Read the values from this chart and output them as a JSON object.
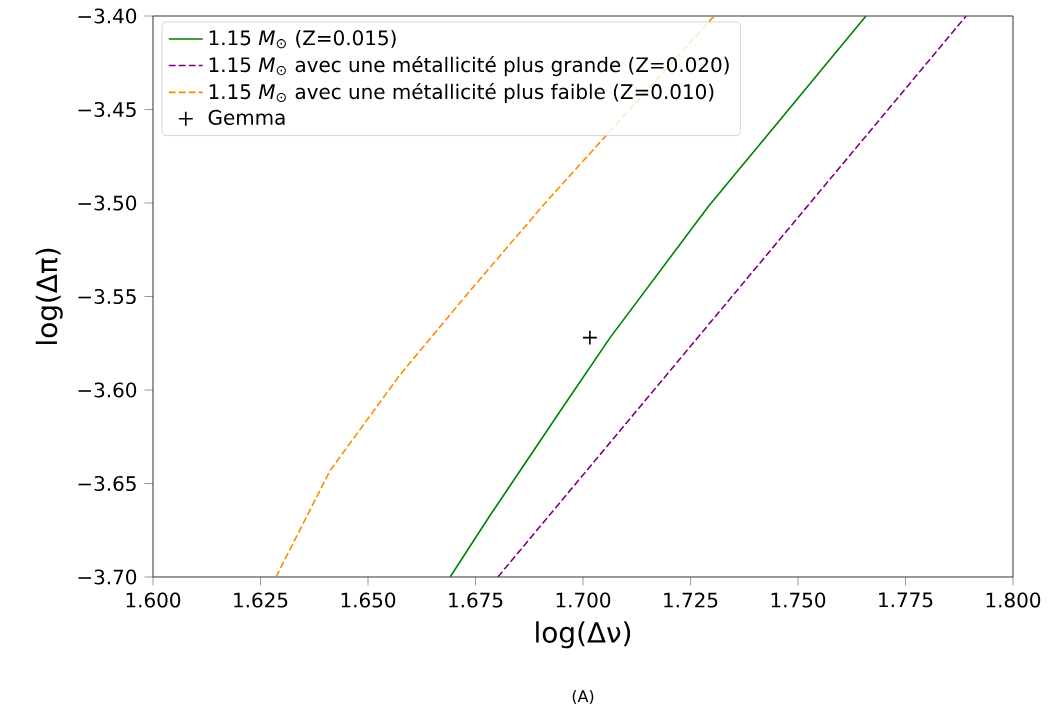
{
  "chart_data": {
    "type": "line",
    "xlabel": "log(Δν)",
    "ylabel": "log(Δπ)",
    "xlim": [
      1.6,
      1.8
    ],
    "ylim": [
      -3.7,
      -3.4
    ],
    "xticks": [
      {
        "value": 1.6,
        "label": "1.600"
      },
      {
        "value": 1.625,
        "label": "1.625"
      },
      {
        "value": 1.65,
        "label": "1.650"
      },
      {
        "value": 1.675,
        "label": "1.675"
      },
      {
        "value": 1.7,
        "label": "1.700"
      },
      {
        "value": 1.725,
        "label": "1.725"
      },
      {
        "value": 1.75,
        "label": "1.750"
      },
      {
        "value": 1.775,
        "label": "1.775"
      },
      {
        "value": 1.8,
        "label": "1.800"
      }
    ],
    "yticks": [
      {
        "value": -3.7,
        "label": "−3.70"
      },
      {
        "value": -3.65,
        "label": "−3.65"
      },
      {
        "value": -3.6,
        "label": "−3.60"
      },
      {
        "value": -3.55,
        "label": "−3.55"
      },
      {
        "value": -3.5,
        "label": "−3.50"
      },
      {
        "value": -3.45,
        "label": "−3.45"
      },
      {
        "value": -3.4,
        "label": "−3.40"
      }
    ],
    "legend": "top left",
    "series": [
      {
        "name": "1.15 *M*$_{⊙}$ (Z=0.015)",
        "color": "#008000",
        "line_style": "solid",
        "x": [
          1.6691,
          1.6784,
          1.6942,
          1.7063,
          1.7291,
          1.7658
        ],
        "values": [
          -3.7,
          -3.667,
          -3.613,
          -3.572,
          -3.502,
          -3.4
        ]
      },
      {
        "name": "1.15 *M*$_{⊙}$ avec une métallicité plus grande (Z=0.020)",
        "color": "#800080",
        "line_style": "dashed",
        "x": [
          1.6802,
          1.7165,
          1.7528,
          1.7891
        ],
        "values": [
          -3.7,
          -3.6,
          -3.5,
          -3.4
        ]
      },
      {
        "name": "1.15 *M*$_{⊙}$ avec une métallicité plus faible (Z=0.010)",
        "color": "#ff8c00",
        "line_style": "dashed",
        "x": [
          1.6286,
          1.6412,
          1.6574,
          1.6737,
          1.6912,
          1.7305
        ],
        "values": [
          -3.7,
          -3.643,
          -3.592,
          -3.547,
          -3.5,
          -3.4
        ]
      },
      {
        "name": "Gemma",
        "type": "scatter",
        "marker": "cross",
        "color": "#000000",
        "x": [
          1.7016
        ],
        "values": [
          -3.572
        ]
      }
    ],
    "annotations": [
      "(A)"
    ]
  }
}
